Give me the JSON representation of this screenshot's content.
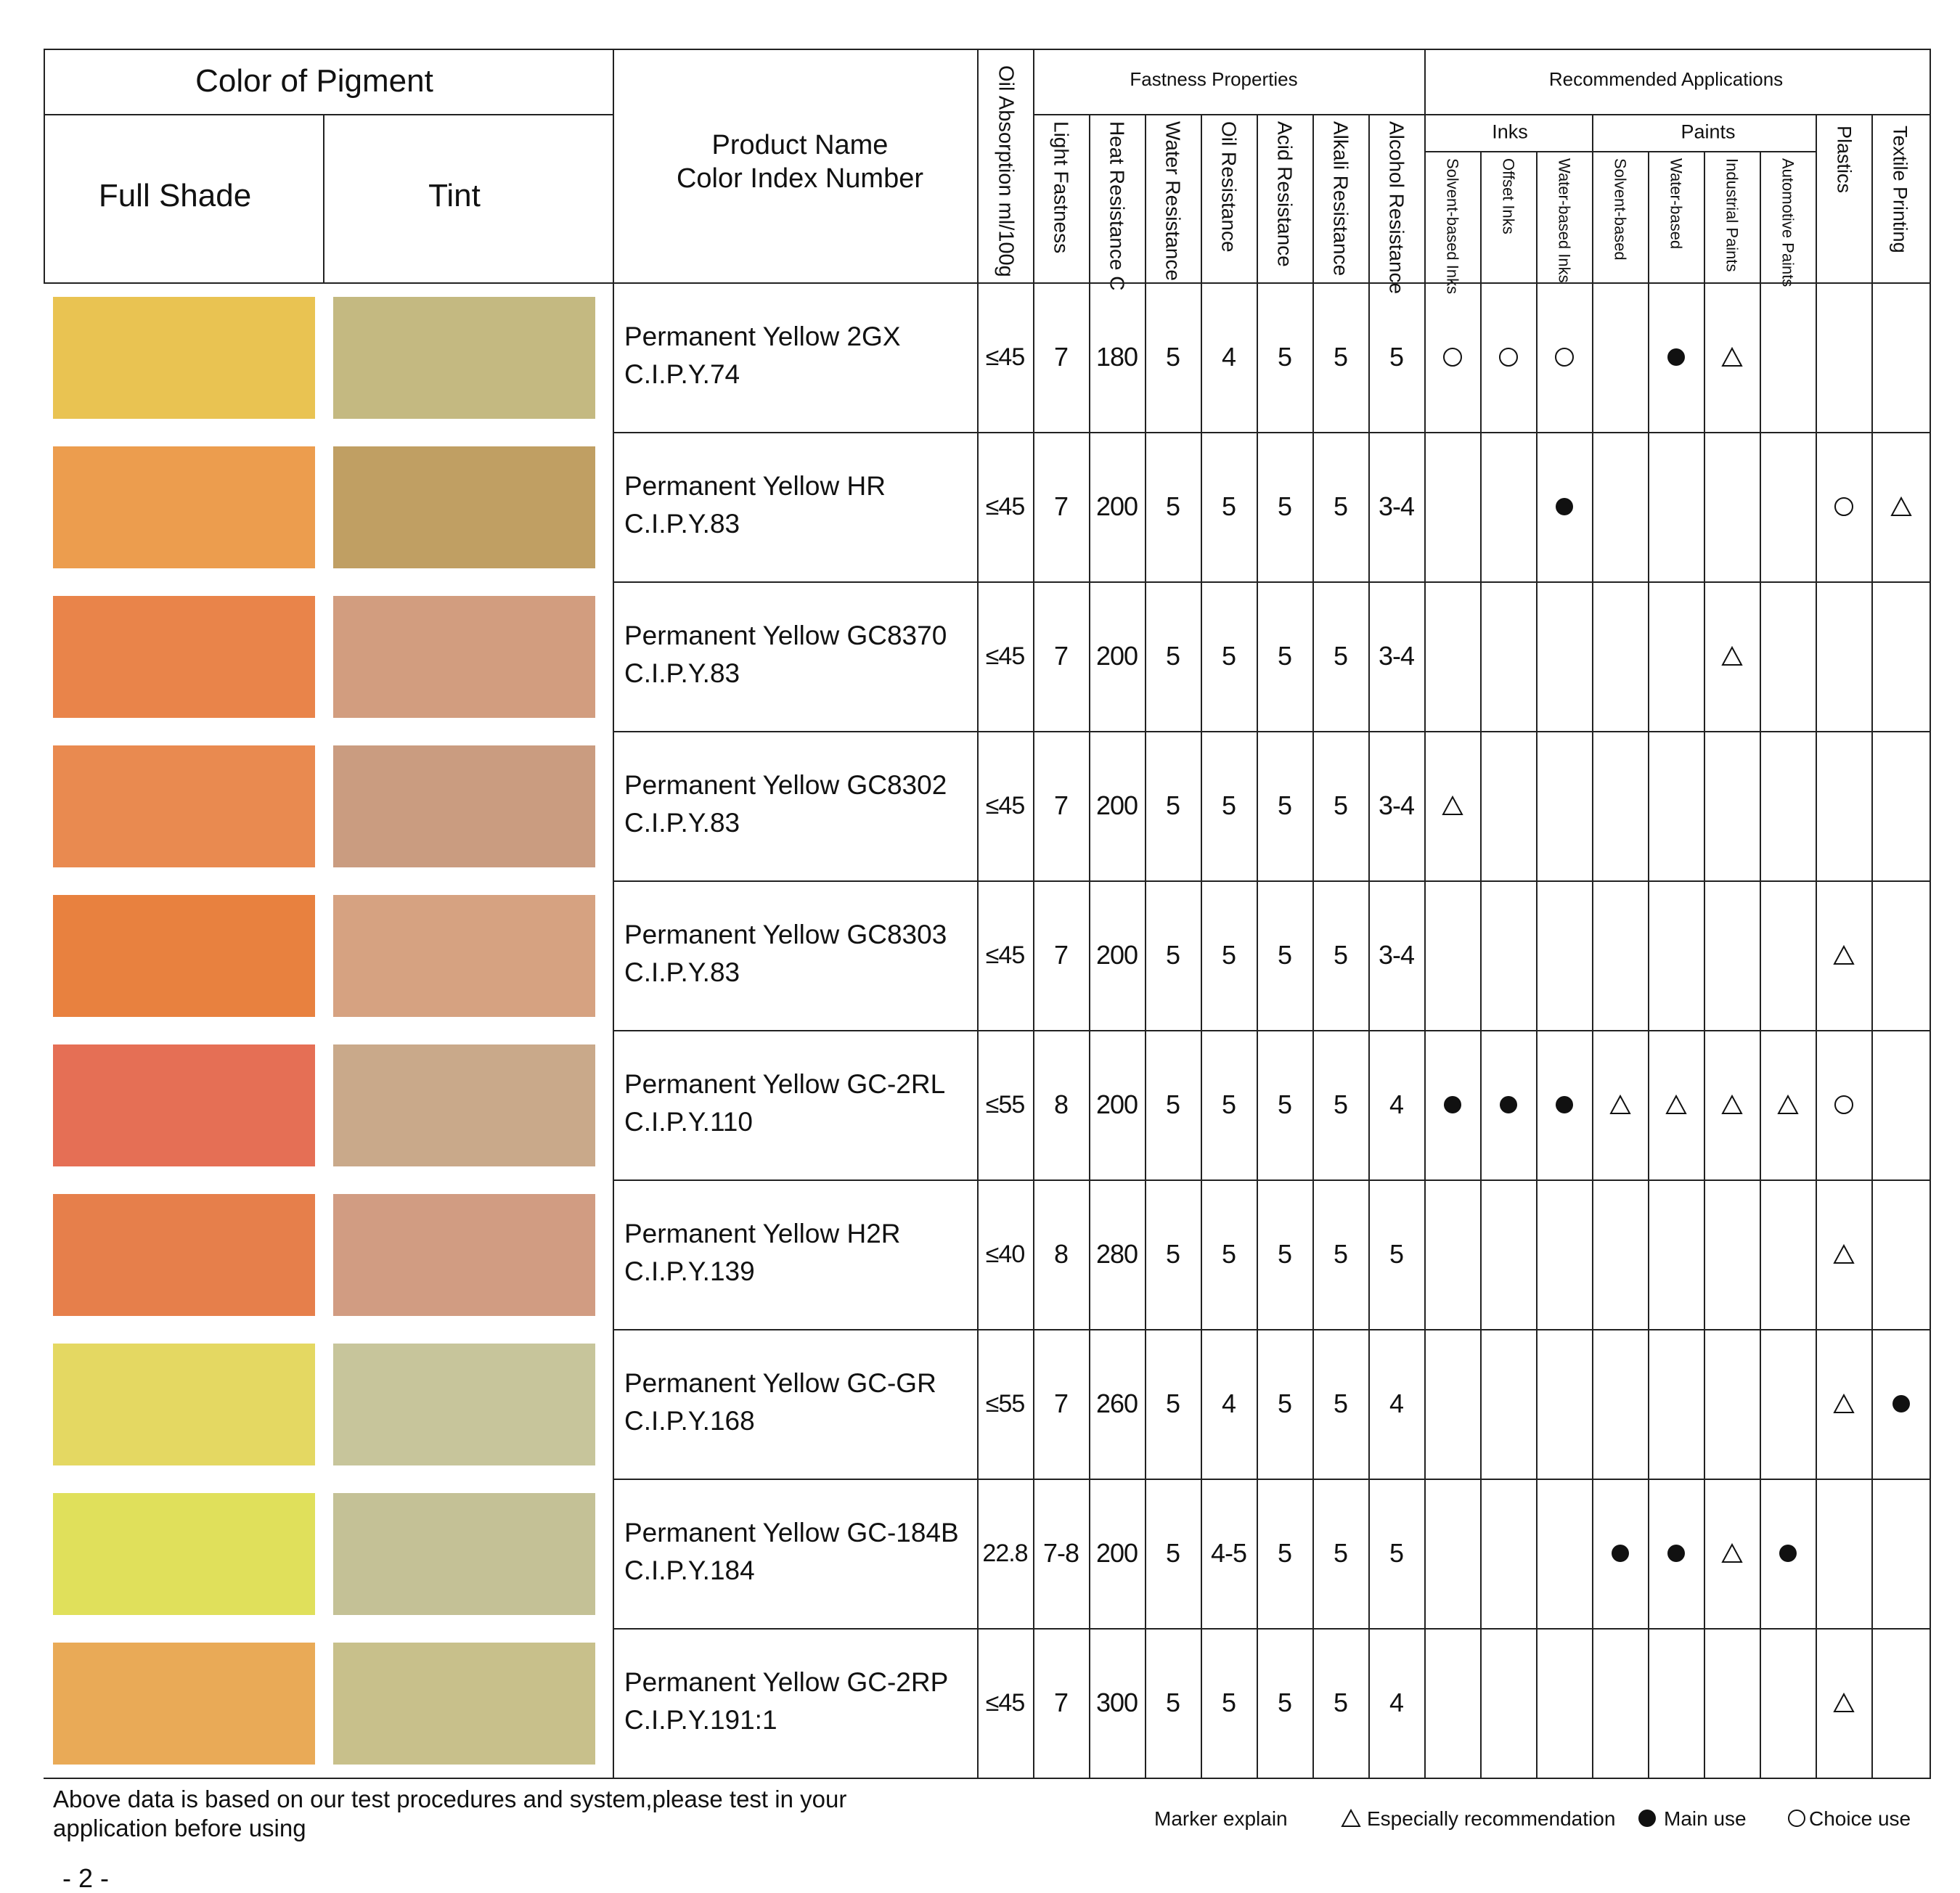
{
  "header": {
    "color_of_pigment": "Color of  Pigment",
    "full_shade": "Full Shade",
    "tint": "Tint",
    "product_name": "Product Name",
    "color_index": "Color Index Number",
    "oil_absorption": "Oil Absorption ml/100g",
    "fastness_group": "Fastness Properties",
    "fastness_cols": [
      "Light Fastness",
      "Heat Resistance C",
      "Water Resistance",
      "Oil Resistance",
      "Acid Resistance",
      "Alkali Resistance",
      "Alcohol Resistance"
    ],
    "applications_group": "Recommended Applications",
    "inks_group": "Inks",
    "inks_cols": [
      "Solvent-based Inks",
      "Offset Inks",
      "Water-based Inks"
    ],
    "paints_group": "Paints",
    "paints_cols": [
      "Solvent-based",
      "Water-based",
      "Industrial Paints",
      "Automotive Paints"
    ],
    "plastics": "Plastics",
    "textile": "Textile Printing"
  },
  "rows": [
    {
      "name": "Permanent Yellow 2GX",
      "ci": "C.I.P.Y.74",
      "full": "#E9C352",
      "tint": "#C4B981",
      "oil": "≤45",
      "vals": [
        "7",
        "180",
        "5",
        "4",
        "5",
        "5",
        "5"
      ],
      "apps": [
        "circle",
        "circle",
        "circle",
        "",
        "dot",
        "triangle",
        "",
        "",
        ""
      ]
    },
    {
      "name": "Permanent Yellow HR",
      "ci": "C.I.P.Y.83",
      "full": "#EC9D4E",
      "tint": "#C09F63",
      "oil": "≤45",
      "vals": [
        "7",
        "200",
        "5",
        "5",
        "5",
        "5",
        "3-4"
      ],
      "apps": [
        "",
        "",
        "dot",
        "",
        "",
        "",
        "",
        "circle",
        "triangle"
      ]
    },
    {
      "name": "Permanent Yellow GC8370",
      "ci": "C.I.P.Y.83",
      "full": "#E9844A",
      "tint": "#D29D7F",
      "oil": "≤45",
      "vals": [
        "7",
        "200",
        "5",
        "5",
        "5",
        "5",
        "3-4"
      ],
      "apps": [
        "",
        "",
        "",
        "",
        "",
        "triangle",
        "",
        "",
        ""
      ]
    },
    {
      "name": "Permanent Yellow GC8302",
      "ci": "C.I.P.Y.83",
      "full": "#E98A50",
      "tint": "#CA9C80",
      "oil": "≤45",
      "vals": [
        "7",
        "200",
        "5",
        "5",
        "5",
        "5",
        "3-4"
      ],
      "apps": [
        "triangle",
        "",
        "",
        "",
        "",
        "",
        "",
        "",
        ""
      ]
    },
    {
      "name": "Permanent Yellow GC8303",
      "ci": "C.I.P.Y.83",
      "full": "#E8813F",
      "tint": "#D6A281",
      "oil": "≤45",
      "vals": [
        "7",
        "200",
        "5",
        "5",
        "5",
        "5",
        "3-4"
      ],
      "apps": [
        "",
        "",
        "",
        "",
        "",
        "",
        "",
        "triangle",
        ""
      ]
    },
    {
      "name": "Permanent Yellow GC-2RL",
      "ci": "C.I.P.Y.110",
      "full": "#E56F55",
      "tint": "#C9A98A",
      "oil": "≤55",
      "vals": [
        "8",
        "200",
        "5",
        "5",
        "5",
        "5",
        "4"
      ],
      "apps": [
        "dot",
        "dot",
        "dot",
        "triangle",
        "triangle",
        "triangle",
        "triangle",
        "circle",
        ""
      ]
    },
    {
      "name": "Permanent Yellow H2R",
      "ci": "C.I.P.Y.139",
      "full": "#E67F4B",
      "tint": "#D19C82",
      "oil": "≤40",
      "vals": [
        "8",
        "280",
        "5",
        "5",
        "5",
        "5",
        "5"
      ],
      "apps": [
        "",
        "",
        "",
        "",
        "",
        "",
        "",
        "triangle",
        ""
      ]
    },
    {
      "name": "Permanent Yellow GC-GR",
      "ci": "C.I.P.Y.168",
      "full": "#E4D862",
      "tint": "#C7C59B",
      "oil": "≤55",
      "vals": [
        "7",
        "260",
        "5",
        "4",
        "5",
        "5",
        "4"
      ],
      "apps": [
        "",
        "",
        "",
        "",
        "",
        "",
        "",
        "triangle",
        "dot"
      ]
    },
    {
      "name": "Permanent Yellow GC-184B",
      "ci": "C.I.P.Y.184",
      "full": "#E0E05B",
      "tint": "#C4C196",
      "oil": "22.8",
      "vals": [
        "7-8",
        "200",
        "5",
        "4-5",
        "5",
        "5",
        "5"
      ],
      "apps": [
        "",
        "",
        "",
        "dot",
        "dot",
        "triangle",
        "dot",
        "",
        ""
      ]
    },
    {
      "name": "Permanent Yellow GC-2RP",
      "ci": "C.I.P.Y.191:1",
      "full": "#E9AA57",
      "tint": "#C8C08B",
      "oil": "≤45",
      "vals": [
        "7",
        "300",
        "5",
        "5",
        "5",
        "5",
        "4"
      ],
      "apps": [
        "",
        "",
        "",
        "",
        "",
        "",
        "",
        "triangle",
        ""
      ]
    }
  ],
  "footer": {
    "note_line1": "Above data is based on our test procedures and system,please test in your",
    "note_line2": "application before using",
    "page_number": "- 2 -",
    "marker_explain": "Marker explain",
    "triangle_label": "Especially recommendation",
    "dot_label": "Main use",
    "circle_label": "Choice use"
  }
}
